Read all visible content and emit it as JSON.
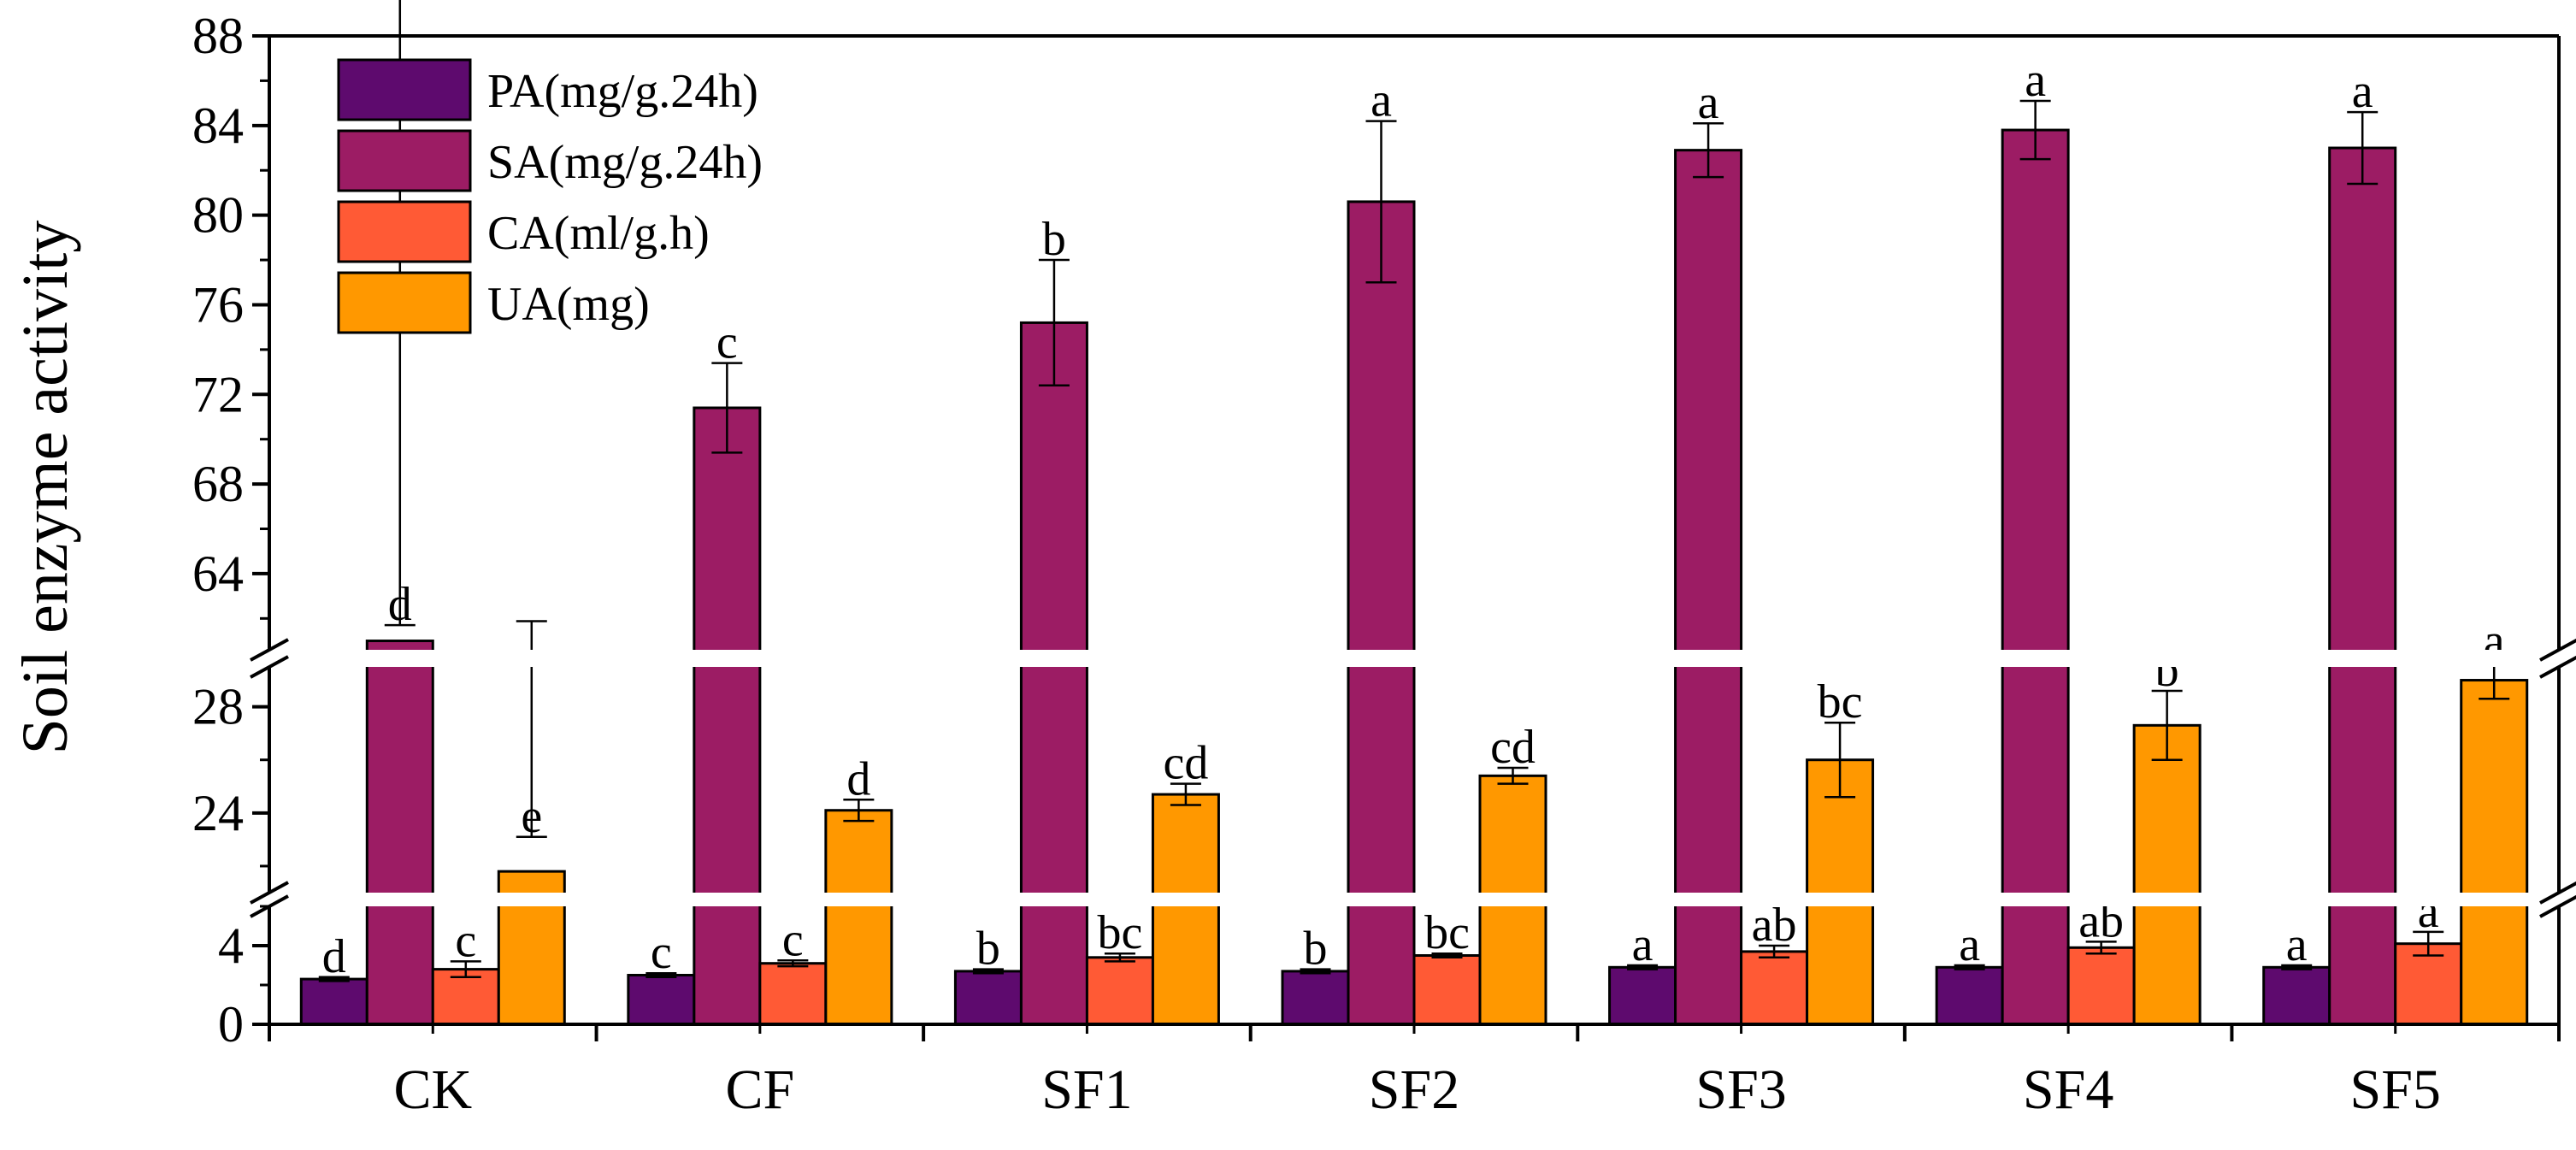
{
  "chart_data": {
    "type": "bar",
    "ylabel": "Soil enzyme activity",
    "categories": [
      "CK",
      "CF",
      "SF1",
      "SF2",
      "SF3",
      "SF4",
      "SF5"
    ],
    "axis_breaks": [
      {
        "ymin": 0,
        "ymax": 6,
        "ticks": [
          0,
          4
        ]
      },
      {
        "ymin": 21,
        "ymax": 29.5,
        "ticks": [
          24,
          28
        ]
      },
      {
        "ymin": 60.6,
        "ymax": 88,
        "ticks": [
          64,
          68,
          72,
          76,
          80,
          84,
          88
        ]
      }
    ],
    "legend_position": "top-left",
    "series": [
      {
        "name": "PA(mg/g.24h)",
        "color": "#5E0A6E",
        "values": [
          2.3,
          2.5,
          2.7,
          2.7,
          2.9,
          2.9,
          2.9
        ],
        "errors": [
          0.1,
          0.1,
          0.1,
          0.1,
          0.1,
          0.1,
          0.1
        ],
        "labels": [
          "d",
          "c",
          "b",
          "b",
          "a",
          "a",
          "a"
        ]
      },
      {
        "name": "SA(mg/g.24h)",
        "color": "#9C1C64",
        "values": [
          61.0,
          71.4,
          75.2,
          80.6,
          82.9,
          83.8,
          83.0
        ],
        "errors": [
          0.7,
          2.0,
          2.8,
          3.6,
          1.2,
          1.3,
          1.6
        ],
        "labels": [
          "d",
          "c",
          "b",
          "a",
          "a",
          "a",
          "a"
        ]
      },
      {
        "name": "CA(ml/g.h)",
        "color": "#FF5A35",
        "values": [
          2.8,
          3.1,
          3.4,
          3.5,
          3.7,
          3.9,
          4.1
        ],
        "errors": [
          0.4,
          0.15,
          0.2,
          0.1,
          0.3,
          0.3,
          0.6
        ],
        "labels": [
          "c",
          "c",
          "bc",
          "bc",
          "ab",
          "ab",
          "a"
        ]
      },
      {
        "name": "UA(mg)",
        "color": "#FF9800",
        "values": [
          21.8,
          24.1,
          24.7,
          25.4,
          26.0,
          27.3,
          29.0
        ],
        "errors": [
          1.3,
          0.4,
          0.4,
          0.3,
          1.4,
          1.3,
          0.7
        ],
        "labels": [
          "e",
          "d",
          "cd",
          "cd",
          "bc",
          "b",
          "a"
        ]
      }
    ]
  }
}
